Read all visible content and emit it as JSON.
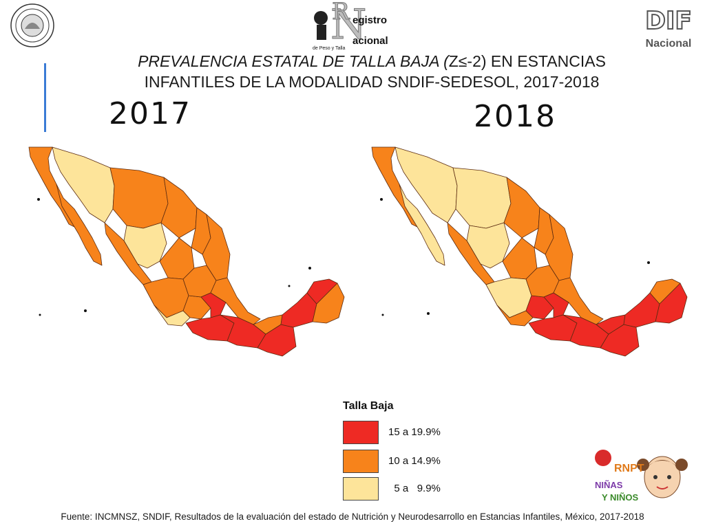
{
  "header": {
    "logos": {
      "seal": {
        "icon": "institutional-seal-icon"
      },
      "rnpt": {
        "line1": "egistro",
        "line2": "acional",
        "line3": "de Peso y Talla",
        "letter_r": "R",
        "letter_n": "N"
      },
      "dif": {
        "line1": "DIF",
        "line2": "Nacional"
      }
    },
    "title_italic": "PREVALENCIA ESTATAL DE TALLA BAJA (",
    "title_normal_1": "Z≤-2) EN ESTANCIAS",
    "title_line2": "INFANTILES DE LA MODALIDAD SNDIF-SEDESOL, 2017-2018"
  },
  "maps": [
    {
      "year": "2017",
      "icon": "mexico-map-icon"
    },
    {
      "year": "2018",
      "icon": "mexico-map-icon"
    }
  ],
  "legend": {
    "title": "Talla Baja",
    "items": [
      {
        "label": "15 a 19.9%",
        "color": "#ee2a24"
      },
      {
        "label": "10 a 14.9%",
        "color": "#f7831b"
      },
      {
        "label": "  5 a   9.9%",
        "color": "#fde49a"
      }
    ]
  },
  "kids_logo": {
    "line1": "RNPT",
    "line2": "NIÑAS",
    "line3": "Y NIÑOS"
  },
  "source": "Fuente: INCMNSZ, SNDIF, Resultados de la evaluación del estado de Nutrición y Neurodesarrollo en Estancias Infantiles, México, 2017-2018",
  "colors": {
    "high": "#ee2a24",
    "mid": "#f7831b",
    "low": "#fde49a",
    "accent": "#3a7bd5"
  }
}
